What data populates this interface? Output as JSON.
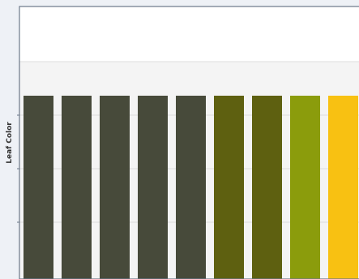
{
  "chart_data": {
    "type": "bar",
    "ylabel": "Leaf Color",
    "xlabel": "",
    "title": "",
    "bar_count": 9,
    "values": [
      1,
      1,
      1,
      1,
      1,
      1,
      1,
      1,
      1
    ],
    "colors": [
      "#474a3a",
      "#474a3a",
      "#474a3a",
      "#474a3a",
      "#474a3a",
      "#5e6010",
      "#5e6010",
      "#8b9c0c",
      "#f8c112"
    ],
    "grid": true,
    "y_ticks_labeled": false,
    "band_fill": "#f4f4f4",
    "axis_color": "#6b7788"
  }
}
